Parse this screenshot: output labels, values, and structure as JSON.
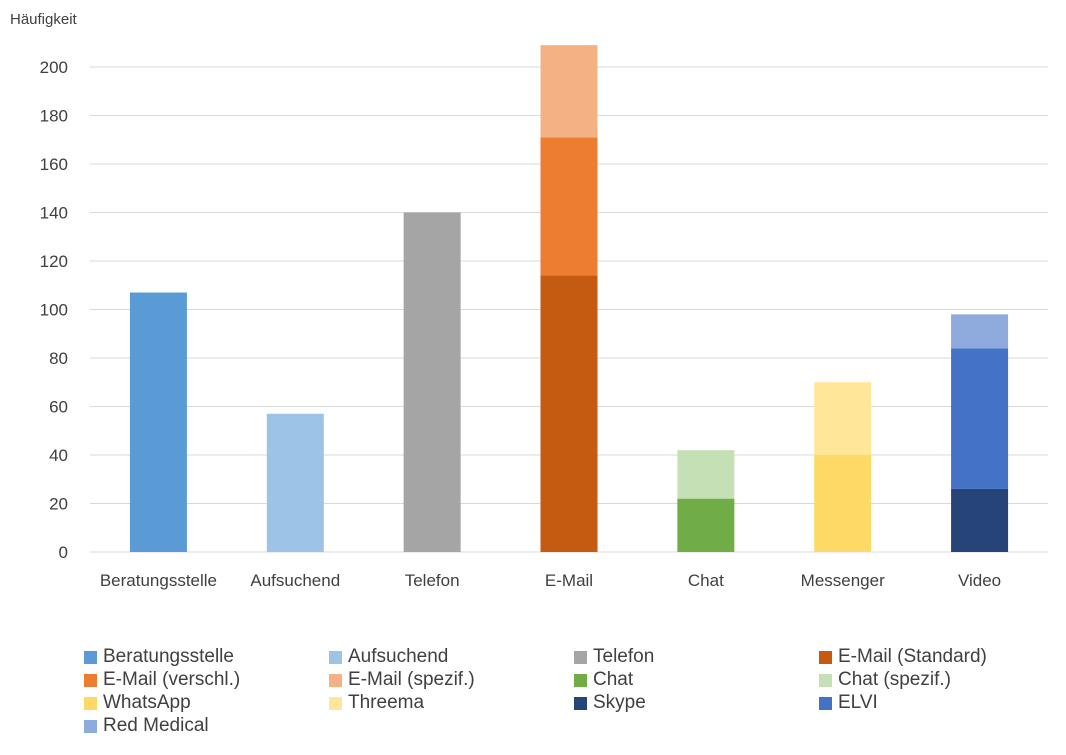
{
  "chart_data": {
    "type": "bar",
    "stacked": true,
    "ylabel": "Häufigkeit",
    "ylim": [
      0,
      210
    ],
    "yticks": [
      0,
      20,
      40,
      60,
      80,
      100,
      120,
      140,
      160,
      180,
      200
    ],
    "categories": [
      "Beratungsstelle",
      "Aufsuchend",
      "Telefon",
      "E-Mail",
      "Chat",
      "Messenger",
      "Video"
    ],
    "grid": true,
    "legend_position": "bottom",
    "series": [
      {
        "name": "Beratungsstelle",
        "color": "#5B9BD5",
        "values": [
          107,
          0,
          0,
          0,
          0,
          0,
          0
        ]
      },
      {
        "name": "Aufsuchend",
        "color": "#9DC3E6",
        "values": [
          0,
          57,
          0,
          0,
          0,
          0,
          0
        ]
      },
      {
        "name": "Telefon",
        "color": "#A5A5A5",
        "values": [
          0,
          0,
          140,
          0,
          0,
          0,
          0
        ]
      },
      {
        "name": "E-Mail (Standard)",
        "color": "#C55A11",
        "values": [
          0,
          0,
          0,
          114,
          0,
          0,
          0
        ]
      },
      {
        "name": "E-Mail (verschl.)",
        "color": "#ED7D31",
        "values": [
          0,
          0,
          0,
          57,
          0,
          0,
          0
        ]
      },
      {
        "name": "E-Mail (spezif.)",
        "color": "#F4B183",
        "values": [
          0,
          0,
          0,
          38,
          0,
          0,
          0
        ]
      },
      {
        "name": "Chat",
        "color": "#70AD47",
        "values": [
          0,
          0,
          0,
          0,
          22,
          0,
          0
        ]
      },
      {
        "name": "Chat (spezif.)",
        "color": "#C5E0B4",
        "values": [
          0,
          0,
          0,
          0,
          20,
          0,
          0
        ]
      },
      {
        "name": "WhatsApp",
        "color": "#FFD966",
        "values": [
          0,
          0,
          0,
          0,
          0,
          40,
          0
        ]
      },
      {
        "name": "Threema",
        "color": "#FFE699",
        "values": [
          0,
          0,
          0,
          0,
          0,
          30,
          0
        ]
      },
      {
        "name": "Skype",
        "color": "#264478",
        "values": [
          0,
          0,
          0,
          0,
          0,
          0,
          26
        ]
      },
      {
        "name": "ELVI",
        "color": "#4472C4",
        "values": [
          0,
          0,
          0,
          0,
          0,
          0,
          58
        ]
      },
      {
        "name": "Red Medical",
        "color": "#8FAADC",
        "values": [
          0,
          0,
          0,
          0,
          0,
          0,
          14
        ]
      }
    ]
  }
}
